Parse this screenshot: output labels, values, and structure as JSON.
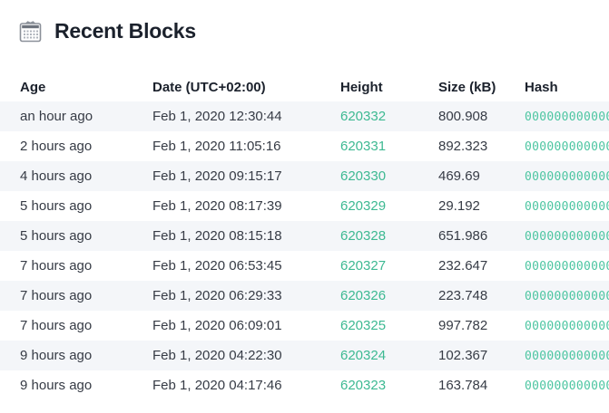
{
  "page_title": {
    "icon": "calendar-icon",
    "text": "Recent Blocks"
  },
  "table": {
    "columns": [
      "Age",
      "Date (UTC+02:00)",
      "Height",
      "Size (kB)",
      "Hash"
    ],
    "rows": [
      {
        "age": "an hour ago",
        "date": "Feb 1, 2020 12:30:44",
        "height": "620332",
        "size": "800.908",
        "hash": "000000000000"
      },
      {
        "age": "2 hours ago",
        "date": "Feb 1, 2020 11:05:16",
        "height": "620331",
        "size": "892.323",
        "hash": "000000000000"
      },
      {
        "age": "4 hours ago",
        "date": "Feb 1, 2020 09:15:17",
        "height": "620330",
        "size": "469.69",
        "hash": "000000000000"
      },
      {
        "age": "5 hours ago",
        "date": "Feb 1, 2020 08:17:39",
        "height": "620329",
        "size": "29.192",
        "hash": "000000000000"
      },
      {
        "age": "5 hours ago",
        "date": "Feb 1, 2020 08:15:18",
        "height": "620328",
        "size": "651.986",
        "hash": "000000000000"
      },
      {
        "age": "7 hours ago",
        "date": "Feb 1, 2020 06:53:45",
        "height": "620327",
        "size": "232.647",
        "hash": "000000000000"
      },
      {
        "age": "7 hours ago",
        "date": "Feb 1, 2020 06:29:33",
        "height": "620326",
        "size": "223.748",
        "hash": "000000000000"
      },
      {
        "age": "7 hours ago",
        "date": "Feb 1, 2020 06:09:01",
        "height": "620325",
        "size": "997.782",
        "hash": "000000000000"
      },
      {
        "age": "9 hours ago",
        "date": "Feb 1, 2020 04:22:30",
        "height": "620324",
        "size": "102.367",
        "hash": "000000000000"
      },
      {
        "age": "9 hours ago",
        "date": "Feb 1, 2020 04:17:46",
        "height": "620323",
        "size": "163.784",
        "hash": "000000000000"
      }
    ]
  },
  "colors": {
    "height_link": "#3db992",
    "hash_link": "#4cc5a1",
    "row_stripe": "#f4f6f9",
    "body_text": "#363b45",
    "heading_text": "#1b212c"
  }
}
